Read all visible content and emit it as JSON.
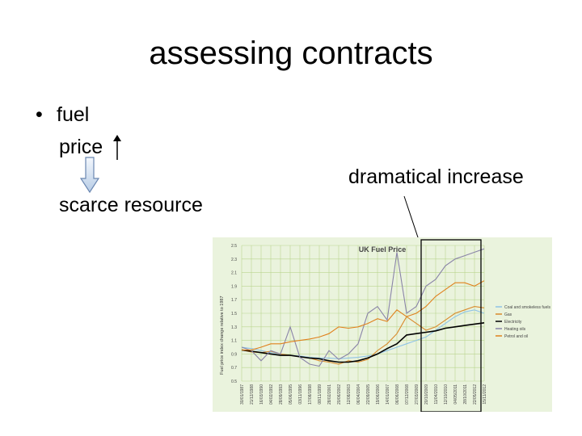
{
  "slide": {
    "title": "assessing contracts",
    "bullet_symbol": "•",
    "bullet_text": "fuel",
    "price_text": "price",
    "scarce_text": "scarce resource",
    "callout_text": "dramatical increase"
  },
  "colors": {
    "chart_bg": "#eaf3dd",
    "grid": "#b9d68f",
    "highlight_box": "#000000"
  },
  "chart_data": {
    "type": "line",
    "title": "UK Fuel Price",
    "ylabel": "Fuel price index change relative to 1987",
    "ylim": [
      0.5,
      2.5
    ],
    "yticks": [
      "2.5",
      "2.3",
      "2.1",
      "1.9",
      "1.7",
      "1.5",
      "1.3",
      "1.1",
      "0.9",
      "0.7",
      "0.5"
    ],
    "categories": [
      "30/01/1987",
      "21/12/1988",
      "16/03/1990",
      "04/02/1992",
      "28/09/1993",
      "05/06/1995",
      "03/11/1996",
      "17/08/1998",
      "08/11/1999",
      "28/02/2001",
      "20/06/2002",
      "12/08/2003",
      "06/04/2004",
      "22/09/2005",
      "19/06/2006",
      "14/01/2007",
      "06/06/2008",
      "07/12/2008",
      "27/03/2009",
      "20/10/2009",
      "11/04/2010",
      "12/10/2010",
      "04/05/2011",
      "28/10/2011",
      "22/05/2012",
      "15/11/2012"
    ],
    "series": [
      {
        "name": "Coal and smokeless fuels",
        "color": "#8fc3e6",
        "values": [
          1.0,
          0.98,
          0.95,
          0.92,
          0.9,
          0.88,
          0.87,
          0.85,
          0.84,
          0.84,
          0.83,
          0.84,
          0.85,
          0.87,
          0.9,
          0.95,
          1.0,
          1.05,
          1.1,
          1.15,
          1.25,
          1.35,
          1.45,
          1.52,
          1.55,
          1.5
        ]
      },
      {
        "name": "Gas",
        "color": "#d98a2c",
        "values": [
          0.96,
          0.93,
          0.92,
          0.94,
          0.9,
          0.88,
          0.86,
          0.84,
          0.8,
          0.78,
          0.75,
          0.8,
          0.78,
          0.82,
          0.95,
          1.05,
          1.2,
          1.45,
          1.35,
          1.25,
          1.3,
          1.4,
          1.5,
          1.55,
          1.6,
          1.58
        ]
      },
      {
        "name": "Electricity",
        "color": "#000000",
        "values": [
          0.96,
          0.94,
          0.92,
          0.9,
          0.88,
          0.88,
          0.86,
          0.84,
          0.83,
          0.8,
          0.78,
          0.78,
          0.8,
          0.84,
          0.9,
          0.98,
          1.05,
          1.18,
          1.2,
          1.22,
          1.24,
          1.28,
          1.3,
          1.32,
          1.34,
          1.36
        ]
      },
      {
        "name": "Heating oils",
        "color": "#8a84a8",
        "values": [
          1.0,
          0.95,
          0.8,
          0.95,
          0.9,
          1.3,
          0.85,
          0.75,
          0.72,
          0.95,
          0.82,
          0.9,
          1.05,
          1.5,
          1.6,
          1.4,
          2.4,
          1.5,
          1.6,
          1.9,
          2.0,
          2.2,
          2.3,
          2.35,
          2.4,
          2.45
        ]
      },
      {
        "name": "Petrol and oil",
        "color": "#e0811d",
        "values": [
          0.96,
          0.96,
          1.0,
          1.05,
          1.05,
          1.08,
          1.1,
          1.12,
          1.15,
          1.2,
          1.3,
          1.28,
          1.3,
          1.35,
          1.42,
          1.38,
          1.55,
          1.45,
          1.5,
          1.6,
          1.75,
          1.85,
          1.95,
          1.95,
          1.9,
          1.98
        ]
      }
    ]
  }
}
